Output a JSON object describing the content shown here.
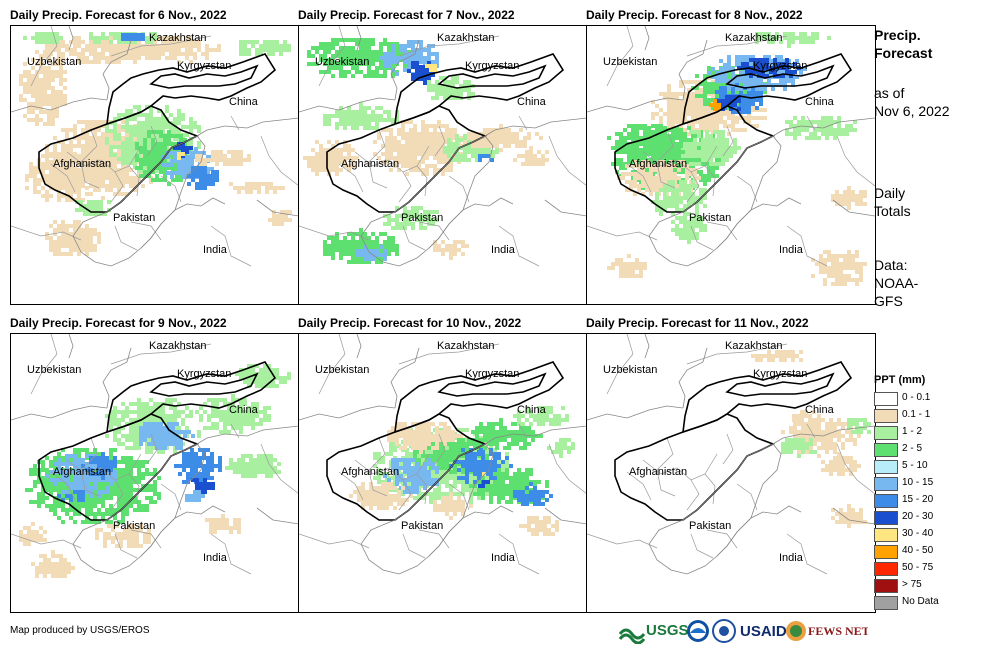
{
  "side": {
    "title_line1": "Precip.",
    "title_line2": "Forecast",
    "asof_line1": "as of",
    "asof_line2": "Nov 6, 2022",
    "daily_line1": "Daily",
    "daily_line2": "Totals",
    "data_line1": "Data:",
    "data_line2": "NOAA-",
    "data_line3": "GFS"
  },
  "panels": [
    {
      "title": "Daily Precip. Forecast for 6 Nov., 2022"
    },
    {
      "title": "Daily Precip. Forecast for 7 Nov., 2022"
    },
    {
      "title": "Daily Precip. Forecast for 8 Nov., 2022"
    },
    {
      "title": "Daily Precip. Forecast for 9 Nov., 2022"
    },
    {
      "title": "Daily Precip. Forecast for 10 Nov., 2022"
    },
    {
      "title": "Daily Precip. Forecast for 11 Nov., 2022"
    }
  ],
  "map_labels": {
    "kazakhstan": "Kazakhstan",
    "uzbekistan": "Uzbekistan",
    "kyrgyzstan": "Kyrgyzstan",
    "china": "China",
    "afghanistan": "Afghanistan",
    "pakistan": "Pakistan",
    "india": "India"
  },
  "legend": {
    "title": "PPT (mm)",
    "items": [
      {
        "label": "0 - 0.1",
        "color": "#ffffff"
      },
      {
        "label": "0.1 - 1",
        "color": "#f2dcb8"
      },
      {
        "label": "1 - 2",
        "color": "#a8f0a0"
      },
      {
        "label": "2 - 5",
        "color": "#5ee070"
      },
      {
        "label": "5 - 10",
        "color": "#b8ecf8"
      },
      {
        "label": "10 - 15",
        "color": "#78b8f0"
      },
      {
        "label": "15 - 20",
        "color": "#3c8ce8"
      },
      {
        "label": "20 - 30",
        "color": "#1a50d0"
      },
      {
        "label": "30 - 40",
        "color": "#ffe680"
      },
      {
        "label": "40 - 50",
        "color": "#ffa200"
      },
      {
        "label": "50 - 75",
        "color": "#ff2800"
      },
      {
        "label": "> 75",
        "color": "#a01010"
      },
      {
        "label": "No Data",
        "color": "#a0a0a0"
      }
    ]
  },
  "credit": "Map produced by USGS/EROS",
  "logos": {
    "usgs": "USGS",
    "usaid": "USAID",
    "fewsnet": "FEWS NET"
  }
}
